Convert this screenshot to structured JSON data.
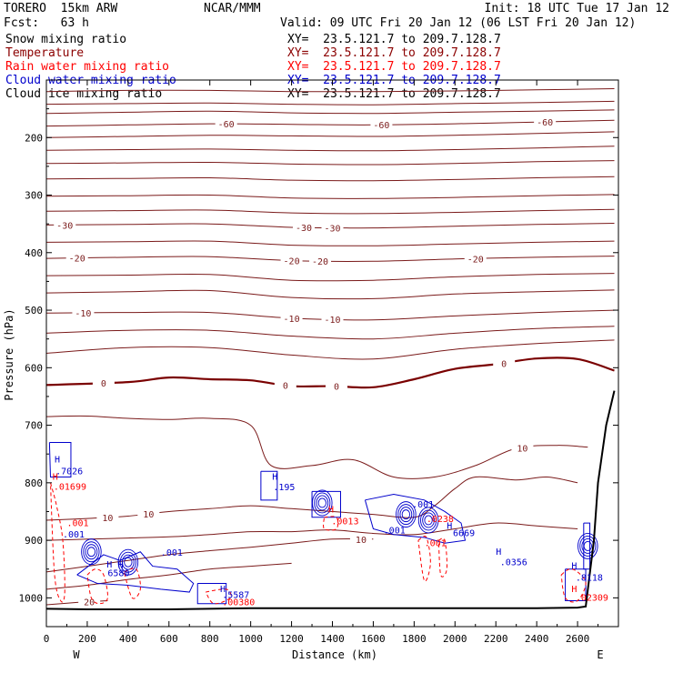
{
  "header": {
    "model": "TORERO  15km ARW",
    "center": "NCAR/MMM",
    "init": "Init: 18 UTC Tue 17 Jan 12",
    "fcst": "Fcst:   63 h",
    "valid": "Valid: 09 UTC Fri 20 Jan 12 (06 LST Fri 20 Jan 12)"
  },
  "fields": [
    {
      "name": "Snow mixing ratio",
      "xy": "XY=  23.5.121.7 to 209.7.128.7",
      "color": "#000000",
      "xy_color": "#000000"
    },
    {
      "name": "Temperature",
      "xy": "XY=  23.5.121.7 to 209.7.128.7",
      "color": "#8b0000",
      "xy_color": "#8b0000"
    },
    {
      "name": "Rain water mixing ratio",
      "xy": "XY=  23.5.121.7 to 209.7.128.7",
      "color": "#ff0000",
      "xy_color": "#ff0000"
    },
    {
      "name": "Cloud water mixing ratio",
      "xy": "XY=  23.5.121.7 to 209.7.128.7",
      "color": "#0000cc",
      "xy_color": "#0000cc"
    },
    {
      "name": "Cloud ice mixing ratio",
      "xy": "XY=  23.5.121.7 to 209.7.128.7",
      "color": "#000000",
      "xy_color": "#000000"
    }
  ],
  "chart_data": {
    "type": "line",
    "title": "",
    "xlabel": "Distance (km)",
    "ylabel": "Pressure (hPa)",
    "xlim": [
      0,
      2800
    ],
    "ylim": [
      1050,
      100
    ],
    "x_ticks": [
      0,
      200,
      400,
      600,
      800,
      1000,
      1200,
      1400,
      1600,
      1800,
      2000,
      2200,
      2400,
      2600
    ],
    "y_ticks": [
      200,
      300,
      400,
      500,
      600,
      700,
      800,
      900,
      1000
    ],
    "end_labels": {
      "left": "W",
      "right": "E"
    },
    "temperature_color": "#7a1a1a",
    "zero_line_color": "#7a0000",
    "cloud_water_color": "#0000cc",
    "rain_color": "#ff0000",
    "terrain_color": "#000000",
    "terrain": {
      "x": [
        0,
        200,
        400,
        600,
        800,
        1000,
        1200,
        1400,
        1600,
        1800,
        2000,
        2200,
        2400,
        2600,
        2640,
        2680,
        2700,
        2740,
        2780
      ],
      "p": [
        1019,
        1020,
        1020,
        1020,
        1019,
        1018,
        1018,
        1018,
        1018,
        1018,
        1018,
        1018,
        1018,
        1017,
        1015,
        900,
        800,
        700,
        640
      ]
    },
    "isotherms": [
      {
        "x": [
          0,
          400,
          800,
          1200,
          1600,
          2000,
          2400,
          2780
        ],
        "p": [
          120,
          118,
          118,
          120,
          120,
          119,
          117,
          115
        ]
      },
      {
        "x": [
          0,
          400,
          800,
          1200,
          1600,
          2000,
          2400,
          2780
        ],
        "p": [
          142,
          141,
          140,
          142,
          143,
          141,
          139,
          137
        ]
      },
      {
        "x": [
          0,
          400,
          800,
          1200,
          1600,
          2000,
          2400,
          2780
        ],
        "p": [
          158,
          156,
          154,
          157,
          158,
          156,
          154,
          152
        ]
      },
      {
        "x": [
          0,
          400,
          800,
          1200,
          1600,
          2000,
          2400,
          2780
        ],
        "p": [
          180,
          178,
          176,
          177,
          178,
          176,
          173,
          170
        ],
        "label": "-60",
        "label_x": [
          880,
          1640,
          2440
        ]
      },
      {
        "x": [
          0,
          400,
          800,
          1200,
          1600,
          2000,
          2400,
          2780
        ],
        "p": [
          200,
          198,
          196,
          197,
          198,
          196,
          193,
          190
        ]
      },
      {
        "x": [
          0,
          400,
          800,
          1200,
          1600,
          2000,
          2400,
          2780
        ],
        "p": [
          222,
          221,
          220,
          222,
          223,
          221,
          218,
          215
        ]
      },
      {
        "x": [
          0,
          400,
          800,
          1200,
          1600,
          2000,
          2400,
          2780
        ],
        "p": [
          245,
          244,
          243,
          246,
          247,
          245,
          242,
          240
        ]
      },
      {
        "x": [
          0,
          400,
          800,
          1200,
          1600,
          2000,
          2400,
          2780
        ],
        "p": [
          272,
          271,
          270,
          274,
          275,
          273,
          270,
          268
        ]
      },
      {
        "x": [
          0,
          400,
          800,
          1200,
          1600,
          2000,
          2400,
          2780
        ],
        "p": [
          302,
          301,
          300,
          305,
          306,
          304,
          301,
          299
        ]
      },
      {
        "x": [
          0,
          400,
          800,
          1200,
          1600,
          2000,
          2400,
          2780
        ],
        "p": [
          328,
          327,
          326,
          331,
          332,
          330,
          327,
          325
        ]
      },
      {
        "x": [
          0,
          400,
          800,
          1200,
          1600,
          2000,
          2400,
          2780
        ],
        "p": [
          352,
          351,
          350,
          356,
          357,
          354,
          351,
          349
        ],
        "label": "-30",
        "label_x": [
          90,
          1260,
          1400
        ]
      },
      {
        "x": [
          0,
          400,
          800,
          1200,
          1600,
          2000,
          2400,
          2780
        ],
        "p": [
          382,
          381,
          380,
          387,
          388,
          385,
          382,
          380
        ]
      },
      {
        "x": [
          0,
          400,
          800,
          1200,
          1600,
          2000,
          2400,
          2780
        ],
        "p": [
          410,
          408,
          407,
          414,
          415,
          411,
          408,
          406
        ],
        "label": "-20",
        "label_x": [
          150,
          1200,
          1340,
          2100
        ]
      },
      {
        "x": [
          0,
          400,
          800,
          1200,
          1600,
          2000,
          2400,
          2780
        ],
        "p": [
          440,
          439,
          438,
          448,
          448,
          442,
          438,
          436
        ]
      },
      {
        "x": [
          0,
          400,
          800,
          1200,
          1600,
          2000,
          2400,
          2780
        ],
        "p": [
          470,
          468,
          466,
          478,
          480,
          472,
          468,
          465
        ]
      },
      {
        "x": [
          0,
          400,
          800,
          1200,
          1600,
          2000,
          2400,
          2780
        ],
        "p": [
          505,
          504,
          504,
          514,
          517,
          510,
          504,
          500
        ],
        "label": "-10",
        "label_x": [
          180,
          1200,
          1400
        ]
      },
      {
        "x": [
          0,
          400,
          800,
          1200,
          1600,
          2000,
          2400,
          2780
        ],
        "p": [
          540,
          535,
          535,
          545,
          550,
          540,
          532,
          528
        ]
      },
      {
        "x": [
          0,
          400,
          800,
          1200,
          1600,
          2000,
          2400,
          2780
        ],
        "p": [
          575,
          565,
          565,
          578,
          585,
          568,
          558,
          552
        ]
      },
      {
        "x": [
          0,
          400,
          600,
          800,
          1000,
          1200,
          1400,
          1600,
          1800,
          2000,
          2200,
          2400,
          2600,
          2780
        ],
        "p": [
          630,
          625,
          617,
          620,
          622,
          632,
          632,
          634,
          620,
          602,
          594,
          584,
          585,
          605
        ],
        "label": "0",
        "label_x": [
          280,
          1170,
          1420,
          2240
        ],
        "bold": true
      },
      {
        "x": [
          0,
          200,
          400,
          600,
          800,
          1000,
          1100,
          1300,
          1500,
          1700,
          1900,
          2100,
          2300,
          2500,
          2650
        ],
        "p": [
          685,
          684,
          688,
          690,
          688,
          700,
          770,
          770,
          760,
          790,
          790,
          770,
          740,
          735,
          738
        ],
        "label": "10",
        "label_x": [
          2330
        ]
      },
      {
        "x": [
          0,
          200,
          400,
          600,
          800,
          1000,
          1200,
          1400,
          1600,
          1800,
          1900,
          2000,
          2100,
          2300,
          2450,
          2600
        ],
        "p": [
          865,
          862,
          858,
          850,
          845,
          840,
          845,
          850,
          855,
          860,
          840,
          810,
          790,
          795,
          790,
          800
        ],
        "label": "10",
        "label_x": [
          300,
          500
        ]
      },
      {
        "x": [
          0,
          200,
          400,
          600,
          800,
          1000,
          1200,
          1400,
          1600,
          1800,
          2000,
          2200,
          2400,
          2600
        ],
        "p": [
          900,
          898,
          896,
          894,
          890,
          885,
          885,
          882,
          888,
          890,
          880,
          870,
          875,
          880
        ]
      },
      {
        "x": [
          0,
          200,
          400,
          600,
          800,
          1000,
          1200,
          1400,
          1600
        ],
        "p": [
          955,
          945,
          935,
          925,
          918,
          912,
          905,
          898,
          898
        ],
        "label": "10",
        "label_x": [
          1540
        ]
      },
      {
        "x": [
          0,
          200,
          400,
          600,
          800,
          1000,
          1200
        ],
        "p": [
          985,
          978,
          968,
          960,
          950,
          945,
          940
        ]
      },
      {
        "x": [
          0,
          150,
          300
        ],
        "p": [
          1012,
          1008,
          1005
        ],
        "label": "20",
        "label_x": [
          210
        ]
      }
    ],
    "cloud_water_regions": [
      {
        "x": [
          15,
          120,
          120,
          20,
          15
        ],
        "p": [
          730,
          730,
          790,
          790,
          730
        ]
      },
      {
        "x": [
          150,
          280,
          360,
          460,
          520,
          640,
          720,
          700,
          560,
          400,
          250,
          150
        ],
        "p": [
          960,
          925,
          935,
          920,
          945,
          950,
          975,
          990,
          985,
          978,
          975,
          960
        ]
      },
      {
        "x": [
          740,
          880,
          880,
          740,
          740
        ],
        "p": [
          975,
          975,
          1010,
          1010,
          975
        ]
      },
      {
        "x": [
          1050,
          1130,
          1130,
          1050,
          1050
        ],
        "p": [
          780,
          780,
          830,
          830,
          780
        ]
      },
      {
        "x": [
          1300,
          1440,
          1440,
          1300,
          1300
        ],
        "p": [
          815,
          815,
          860,
          860,
          815
        ]
      },
      {
        "x": [
          1560,
          1700,
          1850,
          1950,
          2030,
          2050,
          1950,
          1850,
          1700,
          1600,
          1560
        ],
        "p": [
          830,
          820,
          830,
          850,
          870,
          900,
          905,
          895,
          890,
          880,
          830
        ]
      },
      {
        "x": [
          2540,
          2640,
          2640,
          2540,
          2540
        ],
        "p": [
          950,
          950,
          1005,
          1005,
          950
        ]
      },
      {
        "x": [
          2630,
          2660,
          2660,
          2630,
          2630
        ],
        "p": [
          870,
          870,
          950,
          950,
          870
        ]
      }
    ],
    "cloud_water_cores": [
      {
        "x": 220,
        "p": 920
      },
      {
        "x": 400,
        "p": 938
      },
      {
        "x": 1350,
        "p": 835
      },
      {
        "x": 1760,
        "p": 855
      },
      {
        "x": 1870,
        "p": 865
      },
      {
        "x": 2650,
        "p": 910
      }
    ],
    "rain_regions": [
      {
        "x": [
          20,
          50,
          80,
          90,
          70,
          40,
          20
        ],
        "p": [
          800,
          840,
          900,
          990,
          1005,
          960,
          800
        ]
      },
      {
        "x": [
          200,
          240,
          280,
          300,
          260,
          220,
          200
        ],
        "p": [
          960,
          950,
          960,
          1000,
          1010,
          1000,
          960
        ]
      },
      {
        "x": [
          380,
          440,
          460,
          420,
          380
        ],
        "p": [
          955,
          950,
          985,
          1000,
          955
        ]
      },
      {
        "x": [
          780,
          880,
          900,
          820,
          780
        ],
        "p": [
          990,
          985,
          1000,
          1010,
          990
        ]
      },
      {
        "x": [
          1360,
          1420,
          1420,
          1360,
          1360
        ],
        "p": [
          860,
          860,
          880,
          880,
          860
        ]
      },
      {
        "x": [
          1820,
          1860,
          1880,
          1850,
          1820
        ],
        "p": [
          900,
          895,
          940,
          970,
          900
        ]
      },
      {
        "x": [
          1920,
          1950,
          1960,
          1930,
          1920
        ],
        "p": [
          900,
          900,
          950,
          960,
          900
        ]
      },
      {
        "x": [
          2520,
          2560,
          2600,
          2640,
          2600,
          2540,
          2520
        ],
        "p": [
          960,
          950,
          955,
          975,
          1005,
          1000,
          960
        ]
      }
    ],
    "markers": [
      {
        "text": "H",
        "x": 40,
        "p": 765,
        "color": "#0000cc"
      },
      {
        "text": ".7026",
        "x": 45,
        "p": 785,
        "color": "#0000cc"
      },
      {
        "text": "H",
        "x": 30,
        "p": 795,
        "color": "#ff0000"
      },
      {
        "text": ".01699",
        "x": 35,
        "p": 812,
        "color": "#ff0000"
      },
      {
        "text": ".001",
        "x": 100,
        "p": 875,
        "color": "#ff0000"
      },
      {
        "text": ".001",
        "x": 80,
        "p": 895,
        "color": "#0000cc"
      },
      {
        "text": ".001",
        "x": 560,
        "p": 927,
        "color": "#0000cc"
      },
      {
        "text": "H",
        "x": 295,
        "p": 947,
        "color": "#0000cc"
      },
      {
        "text": "H",
        "x": 350,
        "p": 948,
        "color": "#0000cc"
      },
      {
        "text": "6580",
        "x": 300,
        "p": 962,
        "color": "#0000cc"
      },
      {
        "text": "H",
        "x": 850,
        "p": 990,
        "color": "#0000cc"
      },
      {
        "text": ".5587",
        "x": 860,
        "p": 1000,
        "color": "#0000cc"
      },
      {
        "text": ".00380",
        "x": 860,
        "p": 1013,
        "color": "#ff0000"
      },
      {
        "text": "H",
        "x": 1105,
        "p": 795,
        "color": "#0000cc"
      },
      {
        "text": ".195",
        "x": 1110,
        "p": 813,
        "color": "#0000cc"
      },
      {
        "text": "H",
        "x": 1380,
        "p": 852,
        "color": "#ff0000"
      },
      {
        "text": ".0013",
        "x": 1395,
        "p": 872,
        "color": "#ff0000"
      },
      {
        "text": ".001",
        "x": 1790,
        "p": 843,
        "color": "#0000cc"
      },
      {
        "text": ".001",
        "x": 1650,
        "p": 888,
        "color": "#0000cc"
      },
      {
        "text": ".0238",
        "x": 1860,
        "p": 868,
        "color": "#ff0000"
      },
      {
        "text": "H",
        "x": 1960,
        "p": 880,
        "color": "#0000cc"
      },
      {
        "text": "6669",
        "x": 1990,
        "p": 893,
        "color": "#0000cc"
      },
      {
        "text": ".001",
        "x": 1850,
        "p": 910,
        "color": "#ff0000"
      },
      {
        "text": "H",
        "x": 2200,
        "p": 925,
        "color": "#0000cc"
      },
      {
        "text": ".0356",
        "x": 2220,
        "p": 943,
        "color": "#0000cc"
      },
      {
        "text": "H",
        "x": 2570,
        "p": 950,
        "color": "#0000cc"
      },
      {
        "text": ".8118",
        "x": 2590,
        "p": 970,
        "color": "#0000cc"
      },
      {
        "text": "H",
        "x": 2570,
        "p": 990,
        "color": "#ff0000"
      },
      {
        "text": ".02309",
        "x": 2590,
        "p": 1005,
        "color": "#ff0000"
      }
    ]
  }
}
